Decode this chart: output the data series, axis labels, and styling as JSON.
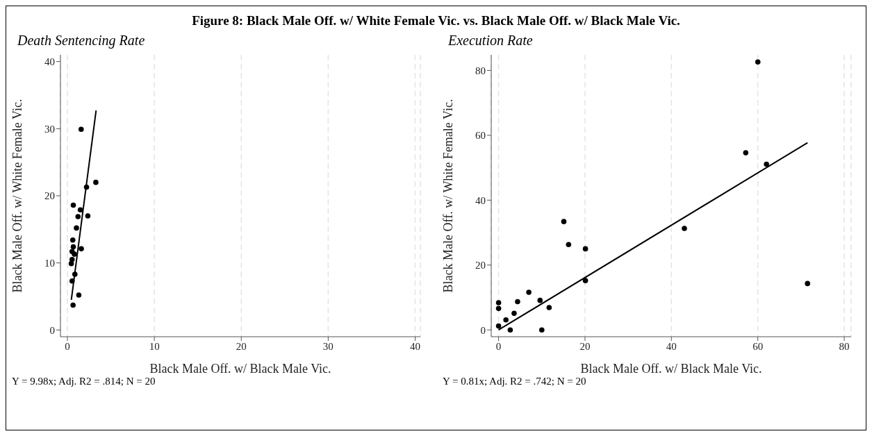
{
  "chart_data": [
    {
      "type": "scatter",
      "title": "Figure 8: Black Male Off. w/ White Female Vic. vs. Black Male Off. w/ Black Male Vic.",
      "subtitle": "Death Sentencing Rate",
      "xlabel": "Black Male Off. w/ Black Male Vic.",
      "ylabel": "Black Male Off. w/ White Female Vic.",
      "annotations": [
        "Y = 9.98x; Adj. R2 = .814; N = 20"
      ],
      "xlim": [
        -0.8,
        40.6
      ],
      "ylim": [
        -1,
        41
      ],
      "xticks": [
        0,
        10,
        20,
        30,
        40
      ],
      "yticks": [
        0,
        10,
        20,
        30,
        40
      ],
      "grid": "x",
      "marker": "circle",
      "x": [
        1.58,
        3.27,
        2.2,
        0.68,
        1.34,
        1.49,
        1.22,
        2.35,
        1.04,
        0.62,
        0.68,
        1.6,
        0.54,
        0.8,
        0.54,
        0.45,
        0.86,
        0.54,
        1.31,
        0.65
      ],
      "series": [
        {
          "color": "#000000",
          "values": [
            29.9,
            22.0,
            21.3,
            18.6,
            null,
            17.9,
            16.9,
            17.0,
            15.2,
            13.4,
            12.4,
            12.1,
            11.7,
            11.3,
            10.5,
            9.9,
            8.3,
            7.3,
            5.2,
            3.7
          ]
        },
        {
          "type": "line",
          "marker": "none",
          "color": "#000000",
          "x": [
            0.45,
            3.3
          ],
          "values": [
            4.5,
            32.7
          ]
        }
      ]
    },
    {
      "type": "scatter",
      "subtitle": "Execution Rate",
      "xlabel": "Black Male Off. w/ Black Male Vic.",
      "ylabel": "Black Male Off. w/ White Female Vic.",
      "annotations": [
        "Y = 0.81x; Adj. R2 = .742; N = 20"
      ],
      "xlim": [
        -1.7,
        81.6
      ],
      "ylim": [
        -2.1,
        84.8
      ],
      "xticks": [
        0,
        20,
        40,
        60,
        80
      ],
      "yticks": [
        0,
        20,
        40,
        60,
        80
      ],
      "grid": "x",
      "marker": "circle",
      "x": [
        60.0,
        57.2,
        62.0,
        43.0,
        15.1,
        16.2,
        20.1,
        20.1,
        71.5,
        7.0,
        4.4,
        9.6,
        0,
        0,
        11.7,
        3.6,
        1.7,
        0,
        2.7,
        10.0
      ],
      "series": [
        {
          "color": "#000000",
          "values": [
            82.6,
            54.6,
            51.1,
            31.3,
            33.4,
            26.3,
            25.0,
            15.2,
            14.3,
            11.6,
            8.7,
            9.1,
            8.4,
            6.6,
            6.9,
            5.1,
            3.1,
            1.2,
            0,
            0
          ]
        },
        {
          "type": "line",
          "marker": "none",
          "color": "#000000",
          "x": [
            0,
            71.5
          ],
          "values": [
            0,
            57.7
          ]
        }
      ]
    }
  ]
}
